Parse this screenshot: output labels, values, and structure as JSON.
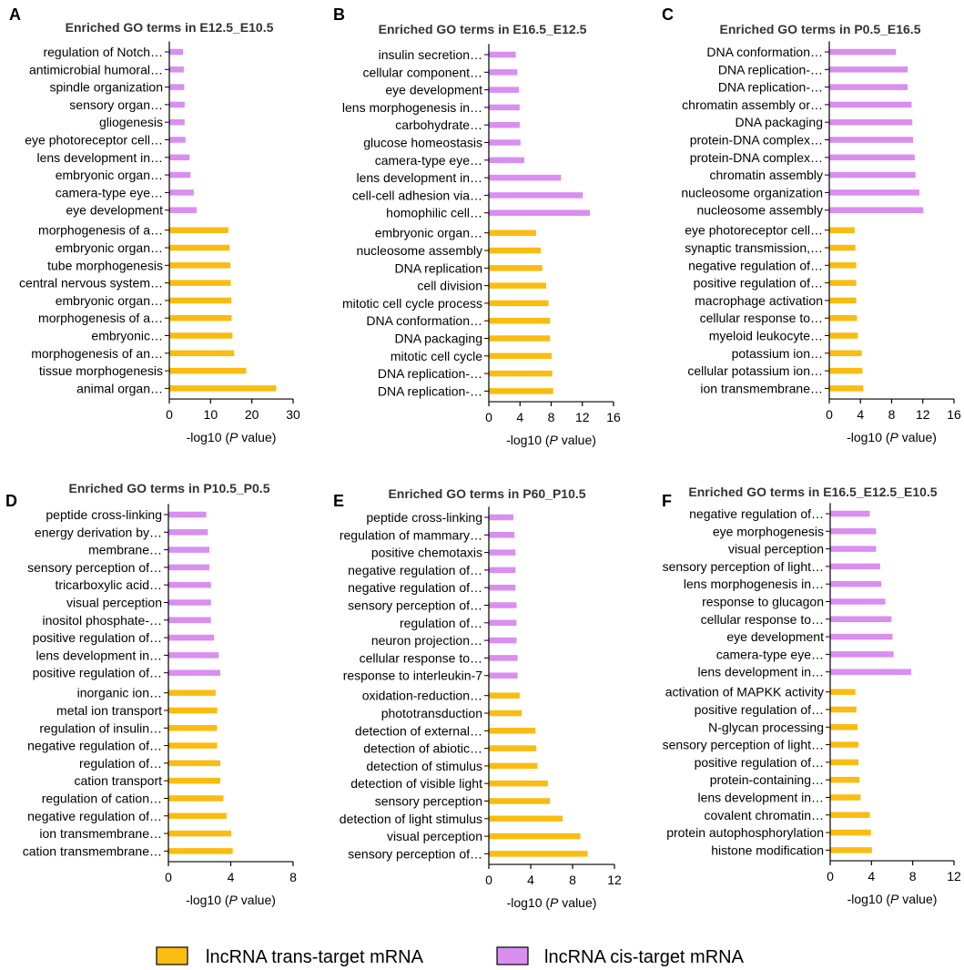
{
  "colors": {
    "cis": "#d98ef0",
    "trans": "#fbbc11",
    "axis": "#000000",
    "title": "#333333"
  },
  "legend": {
    "trans_label": "lncRNA trans-target mRNA",
    "cis_label": "lncRNA cis-target mRNA"
  },
  "chart_data": [
    {
      "type": "bar",
      "orientation": "horizontal",
      "panel": "A",
      "title": "Enriched GO terms in E12.5_E10.5",
      "xlabel_prefix": "-log10 (",
      "xlabel_italic": "P",
      "xlabel_suffix": " value)",
      "xlim": [
        0,
        30
      ],
      "xticks": [
        0,
        10,
        20,
        30
      ],
      "series": [
        {
          "name": "lncRNA cis-target mRNA",
          "group": "cis",
          "categories": [
            "regulation of Notch…",
            "antimicrobial humoral…",
            "spindle organization",
            "sensory organ…",
            "gliogenesis",
            "eye photoreceptor cell…",
            "lens development in…",
            "embryonic organ…",
            "camera-type eye…",
            "eye development"
          ],
          "values": [
            3.2,
            3.4,
            3.5,
            3.6,
            3.6,
            3.8,
            4.8,
            5.0,
            5.8,
            6.5
          ]
        },
        {
          "name": "lncRNA trans-target mRNA",
          "group": "trans",
          "categories": [
            "morphogenesis of a…",
            "embryonic organ…",
            "tube morphogenesis",
            "central nervous system…",
            "embryonic organ…",
            "morphogenesis of a…",
            "embryonic…",
            "morphogenesis of an…",
            "tissue morphogenesis",
            "animal organ…"
          ],
          "values": [
            14.2,
            14.5,
            14.7,
            14.8,
            14.9,
            15.0,
            15.2,
            15.6,
            18.5,
            25.8
          ]
        }
      ]
    },
    {
      "type": "bar",
      "orientation": "horizontal",
      "panel": "B",
      "title": "Enriched GO terms in E16.5_E12.5",
      "xlabel_prefix": "-log10 (",
      "xlabel_italic": "P",
      "xlabel_suffix": " value)",
      "xlim": [
        0,
        16
      ],
      "xticks": [
        0,
        4,
        8,
        12,
        16
      ],
      "series": [
        {
          "name": "lncRNA cis-target mRNA",
          "group": "cis",
          "categories": [
            "insulin secretion…",
            "cellular component…",
            "eye development",
            "lens morphogenesis in…",
            "carbohydrate…",
            "glucose homeostasis",
            "camera-type eye…",
            "lens development in…",
            "cell-cell adhesion via…",
            "homophilic cell…"
          ],
          "values": [
            3.4,
            3.6,
            3.8,
            3.9,
            3.9,
            4.0,
            4.5,
            9.2,
            12.0,
            12.9
          ]
        },
        {
          "name": "lncRNA trans-target mRNA",
          "group": "trans",
          "categories": [
            "embryonic organ…",
            "nucleosome assembly",
            "DNA replication",
            "cell division",
            "mitotic cell cycle process",
            "DNA conformation…",
            "DNA packaging",
            "mitotic cell cycle",
            "DNA replication-…",
            "DNA replication-…"
          ],
          "values": [
            6.0,
            6.6,
            6.8,
            7.3,
            7.6,
            7.8,
            7.8,
            8.0,
            8.1,
            8.2
          ]
        }
      ]
    },
    {
      "type": "bar",
      "orientation": "horizontal",
      "panel": "C",
      "title": "Enriched GO terms in P0.5_E16.5",
      "xlabel_prefix": "-log10 (",
      "xlabel_italic": "P",
      "xlabel_suffix": " value)",
      "xlim": [
        0,
        16
      ],
      "xticks": [
        0,
        4,
        8,
        12,
        16
      ],
      "series": [
        {
          "name": "lncRNA cis-target mRNA",
          "group": "cis",
          "categories": [
            "DNA conformation…",
            "DNA replication-…",
            "DNA replication-…",
            "chromatin assembly or…",
            "DNA packaging",
            "protein-DNA complex…",
            "protein-DNA complex…",
            "chromatin assembly",
            "nucleosome organization",
            "nucleosome assembly"
          ],
          "values": [
            8.5,
            10.0,
            10.0,
            10.5,
            10.6,
            10.7,
            10.9,
            11.0,
            11.5,
            12.0
          ]
        },
        {
          "name": "lncRNA trans-target mRNA",
          "group": "trans",
          "categories": [
            "eye photoreceptor cell…",
            "synaptic transmission,…",
            "negative regulation of…",
            "positive regulation of…",
            "macrophage activation",
            "cellular response to…",
            "myeloid leukocyte…",
            "potassium ion…",
            "cellular potassium ion…",
            "ion transmembrane…"
          ],
          "values": [
            3.2,
            3.3,
            3.4,
            3.4,
            3.4,
            3.5,
            3.6,
            4.1,
            4.2,
            4.3
          ]
        }
      ]
    },
    {
      "type": "bar",
      "orientation": "horizontal",
      "panel": "D",
      "title": "Enriched GO terms in P10.5_P0.5",
      "xlabel_prefix": "-log10 (",
      "xlabel_italic": "P",
      "xlabel_suffix": " value)",
      "xlim": [
        0,
        8
      ],
      "xticks": [
        0,
        4,
        8
      ],
      "series": [
        {
          "name": "lncRNA cis-target mRNA",
          "group": "cis",
          "categories": [
            "peptide cross-linking",
            "energy derivation by…",
            "membrane…",
            "sensory perception of…",
            "tricarboxylic acid…",
            "visual perception",
            "inositol phosphate-…",
            "positive regulation of…",
            "lens development in…",
            "positive regulation of…"
          ],
          "values": [
            2.4,
            2.5,
            2.6,
            2.6,
            2.7,
            2.7,
            2.7,
            2.9,
            3.2,
            3.3
          ]
        },
        {
          "name": "lncRNA trans-target mRNA",
          "group": "trans",
          "categories": [
            "inorganic ion…",
            "metal ion transport",
            "regulation of insulin…",
            "negative regulation of…",
            "regulation of…",
            "cation transport",
            "regulation of cation…",
            "negative regulation of…",
            "ion transmembrane…",
            "cation transmembrane…"
          ],
          "values": [
            3.0,
            3.1,
            3.1,
            3.1,
            3.3,
            3.3,
            3.5,
            3.7,
            4.0,
            4.1
          ]
        }
      ]
    },
    {
      "type": "bar",
      "orientation": "horizontal",
      "panel": "E",
      "title": "Enriched GO terms in P60_P10.5",
      "xlabel_prefix": "-log10 (",
      "xlabel_italic": "P",
      "xlabel_suffix": " value)",
      "xlim": [
        0,
        12
      ],
      "xticks": [
        0,
        4,
        8,
        12
      ],
      "series": [
        {
          "name": "lncRNA cis-target mRNA",
          "group": "cis",
          "categories": [
            "peptide cross-linking",
            "regulation of mammary…",
            "positive chemotaxis",
            "negative regulation of…",
            "negative regulation of…",
            "sensory perception of…",
            "regulation of…",
            "neuron projection…",
            "cellular response to…",
            "response to interleukin-7"
          ],
          "values": [
            2.3,
            2.4,
            2.5,
            2.5,
            2.5,
            2.6,
            2.6,
            2.6,
            2.7,
            2.7
          ]
        },
        {
          "name": "lncRNA trans-target mRNA",
          "group": "trans",
          "categories": [
            "oxidation-reduction…",
            "phototransduction",
            "detection of external…",
            "detection of abiotic…",
            "detection of stimulus",
            "detection of visible light",
            "sensory perception",
            "detection of light stimulus",
            "visual perception",
            "sensory perception of…"
          ],
          "values": [
            2.9,
            3.1,
            4.4,
            4.5,
            4.6,
            5.6,
            5.8,
            7.0,
            8.7,
            9.4
          ]
        }
      ]
    },
    {
      "type": "bar",
      "orientation": "horizontal",
      "panel": "F",
      "title": "Enriched GO terms in E16.5_E12.5_E10.5",
      "xlabel_prefix": "-log10 (",
      "xlabel_italic": "P",
      "xlabel_suffix": " value)",
      "xlim": [
        0,
        12
      ],
      "xticks": [
        0,
        4,
        8,
        12
      ],
      "series": [
        {
          "name": "lncRNA cis-target mRNA",
          "group": "cis",
          "categories": [
            "negative regulation of…",
            "eye morphogenesis",
            "visual perception",
            "sensory perception of light…",
            "lens morphogenesis in…",
            "response to glucagon",
            "cellular response to…",
            "eye development",
            "camera-type eye…",
            "lens development in…"
          ],
          "values": [
            3.8,
            4.4,
            4.4,
            4.8,
            4.9,
            5.3,
            5.9,
            6.0,
            6.1,
            7.8
          ]
        },
        {
          "name": "lncRNA trans-target mRNA",
          "group": "trans",
          "categories": [
            "activation of MAPKK activity",
            "positive regulation of…",
            "N-glycan processing",
            "sensory perception of light…",
            "positive regulation of…",
            "protein-containing…",
            "lens development in…",
            "covalent chromatin…",
            "protein autophosphorylation",
            "histone modification"
          ],
          "values": [
            2.4,
            2.5,
            2.6,
            2.7,
            2.7,
            2.8,
            2.9,
            3.8,
            3.9,
            4.0
          ]
        }
      ]
    }
  ]
}
